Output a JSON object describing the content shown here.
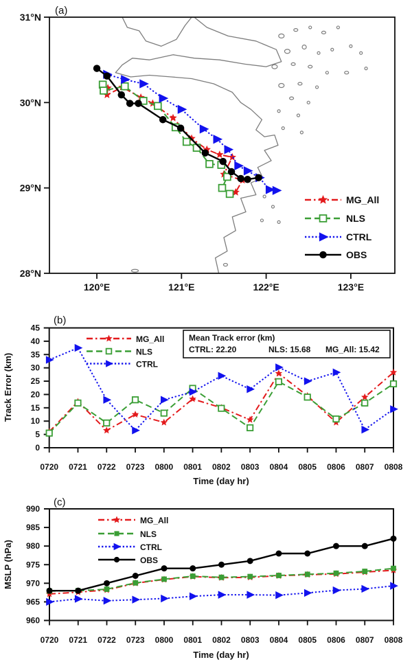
{
  "figure": {
    "panels": {
      "a": {
        "label": "(a)"
      },
      "b": {
        "label": "(b)"
      },
      "c": {
        "label": "(c)"
      }
    }
  },
  "colors": {
    "mg_all": "#e31a1c",
    "nls": "#3a9e35",
    "ctrl": "#1212ee",
    "obs": "#000000",
    "coast": "#7d7d7d"
  },
  "chart_data": [
    {
      "panel": "a",
      "type": "line",
      "kind": "map",
      "xlim": [
        119.44,
        123.52
      ],
      "ylim": [
        28,
        31
      ],
      "x_ticks": [
        {
          "v": 120,
          "label": "120°E"
        },
        {
          "v": 121,
          "label": "121°E"
        },
        {
          "v": 122,
          "label": "122°E"
        },
        {
          "v": 123,
          "label": "123°E"
        }
      ],
      "y_ticks": [
        {
          "v": 31,
          "label": "31°N"
        },
        {
          "v": 30,
          "label": "30°N"
        },
        {
          "v": 29,
          "label": "29°N"
        },
        {
          "v": 28,
          "label": "28°N"
        }
      ],
      "series": [
        {
          "name": "MG_All",
          "color_key": "mg_all",
          "dash": "dashdot",
          "marker": "star",
          "points": [
            [
              120.13,
              30.17
            ],
            [
              120.12,
              30.09
            ],
            [
              120.3,
              30.18
            ],
            [
              120.52,
              30.06
            ],
            [
              120.66,
              29.99
            ],
            [
              120.9,
              29.82
            ],
            [
              121.12,
              29.58
            ],
            [
              121.3,
              29.45
            ],
            [
              121.45,
              29.39
            ],
            [
              121.6,
              29.36
            ],
            [
              121.5,
              29.16
            ],
            [
              121.72,
              29.09
            ],
            [
              121.64,
              28.95
            ]
          ]
        },
        {
          "name": "NLS",
          "color_key": "nls",
          "dash": "dashed",
          "marker": "square-open",
          "points": [
            [
              120.07,
              30.21
            ],
            [
              120.08,
              30.14
            ],
            [
              120.33,
              30.19
            ],
            [
              120.55,
              30.02
            ],
            [
              120.72,
              29.96
            ],
            [
              120.93,
              29.71
            ],
            [
              121.06,
              29.54
            ],
            [
              121.18,
              29.47
            ],
            [
              121.33,
              29.28
            ],
            [
              121.47,
              29.27
            ],
            [
              121.54,
              29.13
            ],
            [
              121.48,
              29.0
            ],
            [
              121.57,
              28.93
            ]
          ]
        },
        {
          "name": "CTRL",
          "color_key": "ctrl",
          "dash": "dotted",
          "marker": "triangle",
          "points": [
            [
              120.12,
              30.33
            ],
            [
              120.33,
              30.27
            ],
            [
              120.55,
              30.22
            ],
            [
              120.78,
              30.05
            ],
            [
              121.0,
              29.92
            ],
            [
              121.26,
              29.69
            ],
            [
              121.42,
              29.57
            ],
            [
              121.55,
              29.45
            ],
            [
              121.67,
              29.26
            ],
            [
              121.78,
              29.2
            ],
            [
              121.92,
              29.12
            ],
            [
              122.04,
              28.98
            ],
            [
              122.12,
              28.97
            ]
          ]
        },
        {
          "name": "OBS",
          "color_key": "obs",
          "dash": "solid",
          "marker": "circle",
          "points": [
            [
              120.0,
              30.4
            ],
            [
              120.12,
              30.31
            ],
            [
              120.29,
              30.09
            ],
            [
              120.39,
              29.99
            ],
            [
              120.49,
              29.99
            ],
            [
              120.78,
              29.8
            ],
            [
              120.99,
              29.7
            ],
            [
              121.28,
              29.41
            ],
            [
              121.49,
              29.31
            ],
            [
              121.59,
              29.19
            ],
            [
              121.7,
              29.11
            ],
            [
              121.78,
              29.1
            ],
            [
              121.91,
              29.12
            ]
          ]
        }
      ],
      "coastline": [
        [
          [
            120.3,
            31.0
          ],
          [
            120.36,
            30.88
          ],
          [
            120.5,
            30.84
          ],
          [
            120.58,
            30.72
          ],
          [
            120.76,
            30.66
          ],
          [
            120.94,
            30.74
          ],
          [
            121.04,
            30.9
          ],
          [
            121.12,
            31.0
          ]
        ],
        [
          [
            121.15,
            31.0
          ],
          [
            121.3,
            30.88
          ],
          [
            121.55,
            30.78
          ],
          [
            121.88,
            30.72
          ],
          [
            122.12,
            30.62
          ],
          [
            122.18,
            30.48
          ],
          [
            122.0,
            30.42
          ],
          [
            121.75,
            30.45
          ],
          [
            121.45,
            30.5
          ],
          [
            121.15,
            30.52
          ],
          [
            120.9,
            30.56
          ],
          [
            120.62,
            30.5
          ],
          [
            120.42,
            30.52
          ],
          [
            120.3,
            30.44
          ],
          [
            120.22,
            30.35
          ],
          [
            120.4,
            30.3
          ],
          [
            120.62,
            30.32
          ],
          [
            120.88,
            30.3
          ],
          [
            121.12,
            30.28
          ],
          [
            121.38,
            30.22
          ],
          [
            121.6,
            30.12
          ],
          [
            121.7,
            30.0
          ],
          [
            121.82,
            29.92
          ],
          [
            121.95,
            29.8
          ],
          [
            121.88,
            29.68
          ],
          [
            121.98,
            29.6
          ],
          [
            122.1,
            29.62
          ],
          [
            122.14,
            29.5
          ],
          [
            121.98,
            29.44
          ],
          [
            122.06,
            29.32
          ],
          [
            121.9,
            29.24
          ],
          [
            121.96,
            29.12
          ],
          [
            121.82,
            29.06
          ],
          [
            121.88,
            28.92
          ],
          [
            121.7,
            28.88
          ],
          [
            121.76,
            28.72
          ],
          [
            121.6,
            28.66
          ],
          [
            121.64,
            28.5
          ],
          [
            121.5,
            28.42
          ],
          [
            121.54,
            28.26
          ],
          [
            121.4,
            28.18
          ],
          [
            121.44,
            28.0
          ]
        ]
      ],
      "islands": [
        [
          122.18,
          30.78,
          4,
          3
        ],
        [
          122.35,
          30.85,
          3,
          2
        ],
        [
          122.52,
          30.88,
          2,
          2
        ],
        [
          122.68,
          30.82,
          3,
          2
        ],
        [
          122.85,
          30.88,
          2,
          2
        ],
        [
          122.25,
          30.6,
          4,
          3
        ],
        [
          122.45,
          30.65,
          3,
          3
        ],
        [
          122.62,
          30.58,
          2,
          2
        ],
        [
          122.78,
          30.62,
          2,
          2
        ],
        [
          123.0,
          30.66,
          2,
          2
        ],
        [
          123.12,
          30.58,
          2,
          2
        ],
        [
          122.1,
          30.42,
          4,
          3
        ],
        [
          122.32,
          30.45,
          3,
          2
        ],
        [
          122.52,
          30.42,
          3,
          2
        ],
        [
          122.72,
          30.35,
          2,
          2
        ],
        [
          122.95,
          30.35,
          3,
          2
        ],
        [
          123.18,
          30.4,
          2,
          2
        ],
        [
          122.18,
          30.2,
          4,
          3
        ],
        [
          122.4,
          30.22,
          3,
          2
        ],
        [
          122.6,
          30.18,
          2,
          2
        ],
        [
          122.3,
          30.05,
          3,
          2
        ],
        [
          122.5,
          30.0,
          2,
          2
        ],
        [
          122.15,
          29.9,
          2,
          2
        ],
        [
          122.38,
          29.85,
          2,
          2
        ],
        [
          122.2,
          29.7,
          2,
          2
        ],
        [
          122.42,
          29.65,
          2,
          2
        ],
        [
          121.98,
          28.9,
          2,
          2
        ],
        [
          122.08,
          28.78,
          2,
          2
        ],
        [
          121.95,
          28.62,
          2,
          2
        ],
        [
          122.15,
          28.6,
          2,
          2
        ],
        [
          120.45,
          28.03,
          5,
          2
        ],
        [
          121.52,
          28.1,
          3,
          2
        ]
      ]
    },
    {
      "panel": "b",
      "type": "line",
      "ylabel": "Track Error (km)",
      "xlabel": "Time (day hr)",
      "categories": [
        "0720",
        "0721",
        "0722",
        "0723",
        "0800",
        "0801",
        "0802",
        "0803",
        "0804",
        "0805",
        "0806",
        "0807",
        "0808"
      ],
      "ylim": [
        0,
        45
      ],
      "ytick_step": 5,
      "series": [
        {
          "name": "MG_All",
          "color_key": "mg_all",
          "dash": "dashdot",
          "marker": "star",
          "values": [
            6,
            17.3,
            6.5,
            12.5,
            9.5,
            18.3,
            15,
            10.5,
            27.9,
            19.5,
            9.5,
            19,
            28.3
          ]
        },
        {
          "name": "NLS",
          "color_key": "nls",
          "dash": "dashed",
          "marker": "square-open",
          "values": [
            5.5,
            16.8,
            9.3,
            18,
            13,
            22.3,
            14.8,
            7.5,
            24.8,
            19,
            10.8,
            16.8,
            24
          ]
        },
        {
          "name": "CTRL",
          "color_key": "ctrl",
          "dash": "dotted",
          "marker": "triangle",
          "values": [
            33,
            37.5,
            18,
            6.5,
            18,
            21,
            27,
            22,
            30.2,
            25,
            28.3,
            6.8,
            14.5
          ]
        }
      ],
      "annotation": {
        "header": "Mean Track error (km)",
        "items": [
          "CTRL:   22.20",
          "NLS: 15.68",
          "MG_All: 15.42"
        ]
      }
    },
    {
      "panel": "c",
      "type": "line",
      "ylabel": "MSLP (hPa)",
      "xlabel": "Time (day hr)",
      "categories": [
        "0720",
        "0721",
        "0722",
        "0723",
        "0800",
        "0801",
        "0802",
        "0803",
        "0804",
        "0805",
        "0806",
        "0807",
        "0808"
      ],
      "ylim": [
        960,
        990
      ],
      "ytick_step": 5,
      "series": [
        {
          "name": "MG_All",
          "color_key": "mg_all",
          "dash": "dashdot",
          "marker": "star",
          "values": [
            967.1,
            967.6,
            968.2,
            970,
            971,
            971.8,
            971.5,
            971.6,
            972,
            972.3,
            972.5,
            973,
            973.5
          ]
        },
        {
          "name": "NLS",
          "color_key": "nls",
          "dash": "dashed",
          "marker": "square-filled",
          "values": [
            967.9,
            968,
            968.4,
            970.1,
            971.1,
            971.9,
            971.6,
            971.8,
            972.1,
            972.4,
            972.7,
            973.2,
            974
          ]
        },
        {
          "name": "CTRL",
          "color_key": "ctrl",
          "dash": "dotted",
          "marker": "triangle",
          "values": [
            965,
            965.8,
            965.3,
            965.6,
            965.9,
            966.5,
            966.9,
            966.9,
            966.8,
            967.4,
            968.1,
            968.5,
            969.3
          ]
        },
        {
          "name": "OBS",
          "color_key": "obs",
          "dash": "solid",
          "marker": "circle",
          "values": [
            968,
            968,
            970,
            972,
            974,
            974,
            975,
            976,
            978,
            978,
            980,
            980,
            982
          ]
        }
      ]
    }
  ]
}
